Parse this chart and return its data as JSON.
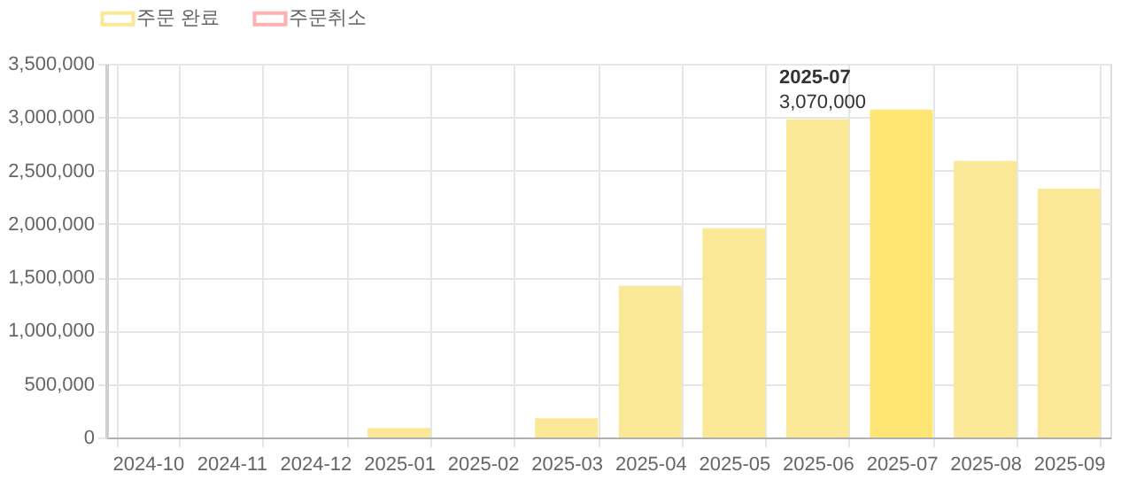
{
  "chart_data": {
    "type": "bar",
    "categories": [
      "2024-10",
      "2024-11",
      "2024-12",
      "2025-01",
      "2025-02",
      "2025-03",
      "2025-04",
      "2025-05",
      "2025-06",
      "2025-07",
      "2025-08",
      "2025-09"
    ],
    "series": [
      {
        "name": "주문 완료",
        "color": "#fae896",
        "colors": [
          "#fae896",
          "#fae896",
          "#fae896",
          "#fae896",
          "#fae896",
          "#fae896",
          "#fae896",
          "#fae896",
          "#fae896",
          "#fee574",
          "#fae896",
          "#fae896"
        ],
        "values": [
          0,
          0,
          0,
          90000,
          0,
          180000,
          1420000,
          1960000,
          2980000,
          3070000,
          2590000,
          2330000
        ]
      },
      {
        "name": "주문취소",
        "color": "#ffb1b1",
        "values": [
          null,
          null,
          null,
          null,
          null,
          null,
          null,
          null,
          null,
          null,
          null,
          null
        ]
      }
    ],
    "ylim": [
      0,
      3500000
    ],
    "yticks": [
      0,
      {
        "value": 500000,
        "label": "500,000"
      },
      {
        "value": 1000000,
        "label": "1,000,000"
      },
      {
        "value": 1500000,
        "label": "1,500,000"
      },
      {
        "value": 2000000,
        "label": "2,000,000"
      },
      {
        "value": 2500000,
        "label": "2,500,000"
      },
      {
        "value": 3000000,
        "label": "3,000,000"
      },
      {
        "value": 3500000,
        "label": "3,500,000"
      }
    ],
    "grid": true,
    "legend": "top",
    "annotations": [
      "2025-07",
      "3,070,000"
    ]
  }
}
